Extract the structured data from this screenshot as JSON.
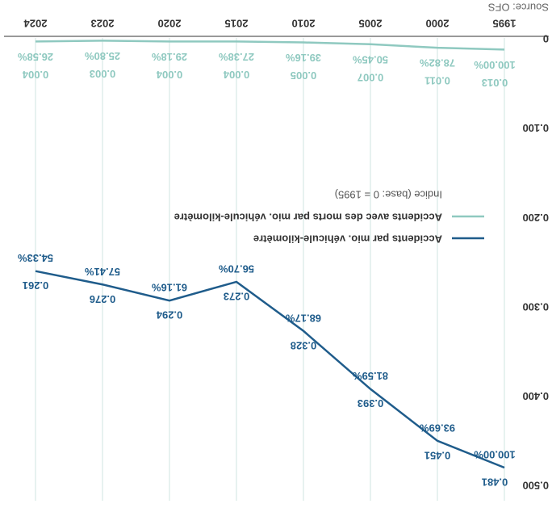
{
  "chart_data": {
    "type": "line",
    "source": "Source: OFS",
    "legend_note": "Indice (base: 0 = 1995)",
    "categories": [
      "1995",
      "2000",
      "2005",
      "2010",
      "2015",
      "2020",
      "2023",
      "2024"
    ],
    "series": [
      {
        "name": "Accidents par mio. véhicule-kilomètre",
        "color": "#1f5c8b",
        "values": [
          0.481,
          0.451,
          0.393,
          0.328,
          0.273,
          0.294,
          0.276,
          0.261
        ],
        "index_labels": [
          "100.00%",
          "93.69%",
          "81.59%",
          "68.17%",
          "56.70%",
          "61.16%",
          "57.41%",
          "54.33%"
        ]
      },
      {
        "name": "Accidents avec des morts par mio. véhicule-kilomètre",
        "color": "#8fc9c0",
        "values": [
          0.013,
          0.011,
          0.007,
          0.005,
          0.004,
          0.004,
          0.003,
          0.004
        ],
        "index_labels": [
          "100.00%",
          "78.82%",
          "50.45%",
          "39.16%",
          "27.38%",
          "29.18%",
          "25.80%",
          "26.58%"
        ]
      }
    ],
    "ylim": [
      0,
      0.5
    ],
    "yticks": [
      0,
      {
        "value": 0.1,
        "label": "0.100"
      },
      {
        "value": 0.2,
        "label": "0.200"
      },
      {
        "value": 0.3,
        "label": "0.300"
      },
      {
        "value": 0.4,
        "label": "0.400"
      },
      {
        "value": 0.5,
        "label": "0.500"
      }
    ],
    "rotated": 180
  }
}
